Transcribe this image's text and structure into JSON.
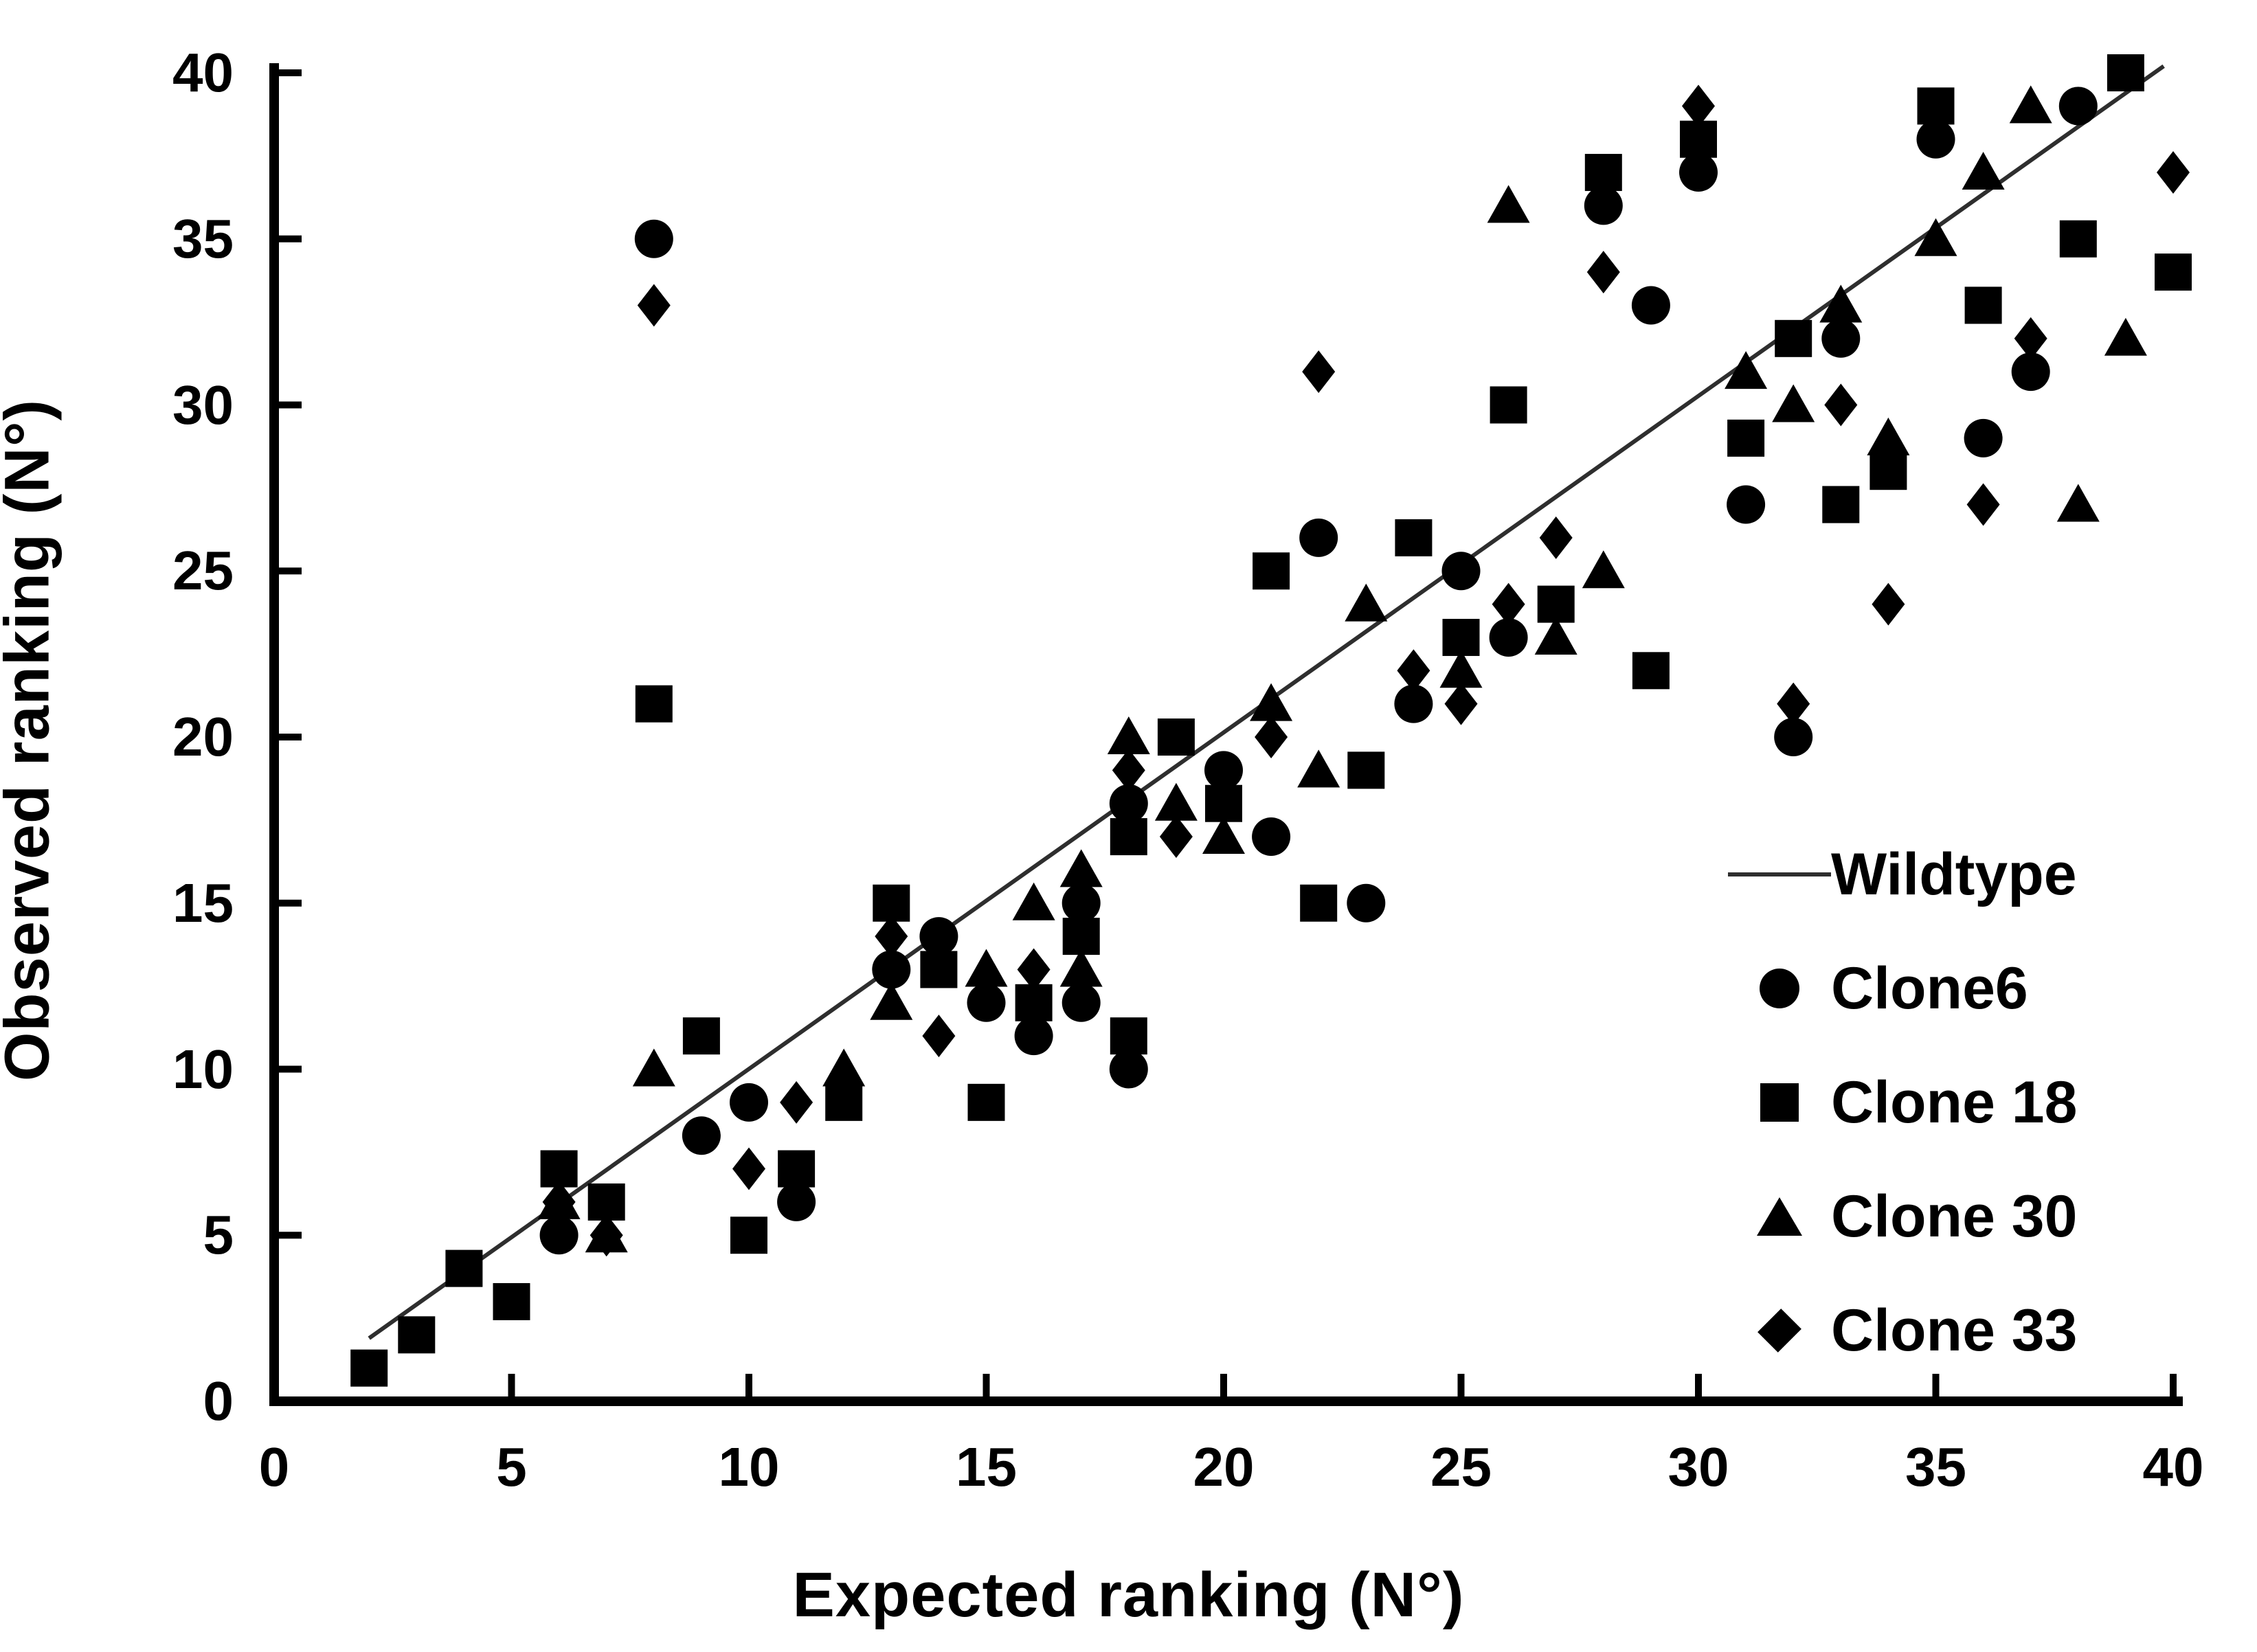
{
  "chart_data": {
    "type": "scatter",
    "title": "",
    "xlabel": "Expected ranking (N°)",
    "ylabel": "Observed ranking (N°)",
    "xlim": [
      0,
      40
    ],
    "ylim": [
      0,
      40
    ],
    "xticks": [
      0,
      5,
      10,
      15,
      20,
      25,
      30,
      35,
      40
    ],
    "yticks": [
      0,
      5,
      10,
      15,
      20,
      25,
      30,
      35,
      40
    ],
    "grid": false,
    "legend_position": "inside-lower-right",
    "reference_line": {
      "name": "Wildtype",
      "from": [
        2,
        1.9
      ],
      "to": [
        39.8,
        40.2
      ]
    },
    "series": [
      {
        "name": "Clone6",
        "marker": "circle",
        "points": [
          [
            6,
            5
          ],
          [
            8,
            35
          ],
          [
            9,
            8
          ],
          [
            10,
            9
          ],
          [
            11,
            6
          ],
          [
            13,
            13
          ],
          [
            14,
            14
          ],
          [
            15,
            12
          ],
          [
            16,
            11
          ],
          [
            17,
            12
          ],
          [
            17,
            15
          ],
          [
            18,
            10
          ],
          [
            18,
            18
          ],
          [
            20,
            19
          ],
          [
            21,
            17
          ],
          [
            22,
            26
          ],
          [
            23,
            15
          ],
          [
            24,
            21
          ],
          [
            25,
            25
          ],
          [
            26,
            23
          ],
          [
            28,
            36
          ],
          [
            29,
            33
          ],
          [
            30,
            37
          ],
          [
            31,
            27
          ],
          [
            32,
            20
          ],
          [
            33,
            32
          ],
          [
            35,
            38
          ],
          [
            36,
            29
          ],
          [
            37,
            31
          ],
          [
            38,
            39
          ]
        ]
      },
      {
        "name": "Clone 18",
        "marker": "square",
        "points": [
          [
            2,
            1
          ],
          [
            3,
            2
          ],
          [
            4,
            4
          ],
          [
            5,
            3
          ],
          [
            6,
            7
          ],
          [
            7,
            6
          ],
          [
            8,
            21
          ],
          [
            9,
            11
          ],
          [
            10,
            5
          ],
          [
            11,
            7
          ],
          [
            12,
            9
          ],
          [
            13,
            15
          ],
          [
            14,
            13
          ],
          [
            15,
            9
          ],
          [
            16,
            12
          ],
          [
            17,
            14
          ],
          [
            18,
            11
          ],
          [
            18,
            17
          ],
          [
            19,
            20
          ],
          [
            20,
            18
          ],
          [
            21,
            25
          ],
          [
            22,
            15
          ],
          [
            23,
            19
          ],
          [
            24,
            26
          ],
          [
            25,
            23
          ],
          [
            26,
            30
          ],
          [
            27,
            24
          ],
          [
            28,
            37
          ],
          [
            29,
            22
          ],
          [
            30,
            38
          ],
          [
            31,
            29
          ],
          [
            32,
            32
          ],
          [
            33,
            27
          ],
          [
            34,
            28
          ],
          [
            35,
            39
          ],
          [
            36,
            33
          ],
          [
            38,
            35
          ],
          [
            39,
            40
          ],
          [
            40,
            34
          ]
        ]
      },
      {
        "name": "Clone 30",
        "marker": "triangle",
        "points": [
          [
            6,
            6
          ],
          [
            7,
            5
          ],
          [
            8,
            10
          ],
          [
            12,
            10
          ],
          [
            13,
            12
          ],
          [
            15,
            13
          ],
          [
            16,
            15
          ],
          [
            17,
            13
          ],
          [
            17,
            16
          ],
          [
            18,
            20
          ],
          [
            19,
            18
          ],
          [
            20,
            17
          ],
          [
            21,
            21
          ],
          [
            22,
            19
          ],
          [
            23,
            24
          ],
          [
            25,
            22
          ],
          [
            26,
            36
          ],
          [
            27,
            23
          ],
          [
            28,
            25
          ],
          [
            31,
            31
          ],
          [
            32,
            30
          ],
          [
            33,
            33
          ],
          [
            34,
            29
          ],
          [
            35,
            35
          ],
          [
            36,
            37
          ],
          [
            37,
            39
          ],
          [
            38,
            27
          ],
          [
            39,
            32
          ]
        ]
      },
      {
        "name": "Clone 33",
        "marker": "diamond",
        "points": [
          [
            6,
            6
          ],
          [
            7,
            5
          ],
          [
            8,
            33
          ],
          [
            10,
            7
          ],
          [
            11,
            9
          ],
          [
            13,
            14
          ],
          [
            14,
            11
          ],
          [
            16,
            13
          ],
          [
            18,
            19
          ],
          [
            19,
            17
          ],
          [
            21,
            20
          ],
          [
            22,
            31
          ],
          [
            24,
            22
          ],
          [
            25,
            21
          ],
          [
            26,
            24
          ],
          [
            27,
            26
          ],
          [
            28,
            34
          ],
          [
            30,
            39
          ],
          [
            32,
            21
          ],
          [
            33,
            30
          ],
          [
            34,
            24
          ],
          [
            36,
            27
          ],
          [
            37,
            32
          ],
          [
            40,
            37
          ]
        ]
      }
    ]
  },
  "legend": {
    "items": [
      {
        "label": "Wildtype",
        "marker": "line"
      },
      {
        "label": "Clone6",
        "marker": "circle"
      },
      {
        "label": "Clone 18",
        "marker": "square"
      },
      {
        "label": "Clone 30",
        "marker": "triangle"
      },
      {
        "label": "Clone 33",
        "marker": "diamond"
      }
    ]
  },
  "colors": {
    "marker": "#000000",
    "reference_line": "#2e2e2e",
    "axis": "#000000",
    "background": "#ffffff"
  }
}
